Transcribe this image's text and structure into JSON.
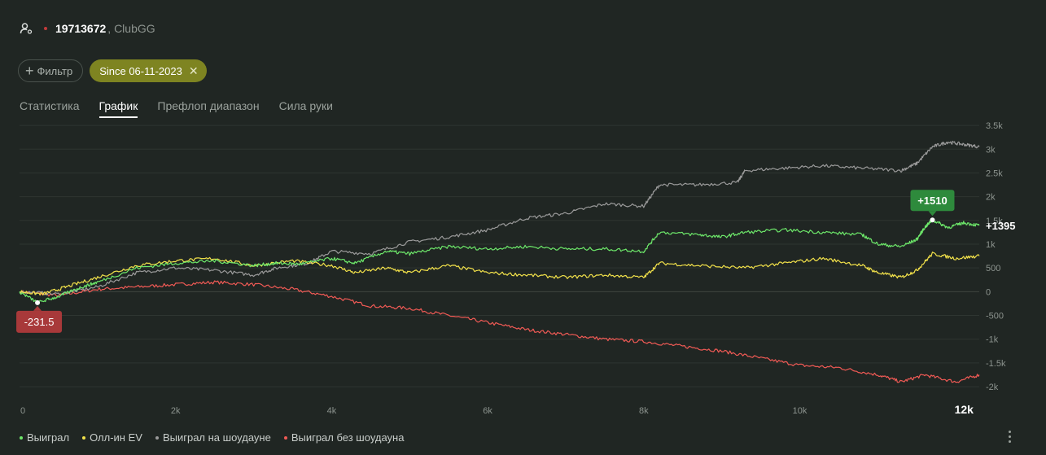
{
  "header": {
    "player_id": "19713672",
    "room": ", ClubGG"
  },
  "filters": {
    "add_filter_label": "Фильтр",
    "active_chip_label": "Since 06-11-2023"
  },
  "tabs": [
    {
      "label": "Статистика",
      "active": false
    },
    {
      "label": "График",
      "active": true
    },
    {
      "label": "Префлоп диапазон",
      "active": false
    },
    {
      "label": "Сила руки",
      "active": false
    }
  ],
  "legend": [
    {
      "label": "Выиграл",
      "color": "#6de86a"
    },
    {
      "label": "Олл-ин EV",
      "color": "#f3e24a"
    },
    {
      "label": "Выиграл на шоудауне",
      "color": "#9a9a9a"
    },
    {
      "label": "Выиграл без шоудауна",
      "color": "#f05a55"
    }
  ],
  "chart_data": {
    "type": "line",
    "x_ticks": [
      "0",
      "2k",
      "4k",
      "6k",
      "8k",
      "10k",
      "12k"
    ],
    "x_tick_values": [
      0,
      2000,
      4000,
      6000,
      8000,
      10000,
      12000
    ],
    "y_ticks": [
      "3.5k",
      "3k",
      "2.5k",
      "2k",
      "1.5k",
      "1k",
      "500",
      "0",
      "-500",
      "-1k",
      "-1.5k",
      "-2k"
    ],
    "y_tick_values": [
      3500,
      3000,
      2500,
      2000,
      1500,
      1000,
      500,
      0,
      -500,
      -1000,
      -1500,
      -2000
    ],
    "xlim": [
      0,
      12300
    ],
    "ylim": [
      -2050,
      3450
    ],
    "annotations": {
      "max": {
        "label": "+1510",
        "x": 11700,
        "y": 1510
      },
      "min": {
        "label": "-231.5",
        "x": 230,
        "y": -231.5
      },
      "last": {
        "label": "+1395",
        "x": 12300,
        "y": 1395
      }
    },
    "series": [
      {
        "name": "Выиграл",
        "color": "#6de86a",
        "points": [
          [
            0,
            0
          ],
          [
            230,
            -231
          ],
          [
            500,
            -100
          ],
          [
            800,
            100
          ],
          [
            1000,
            200
          ],
          [
            1500,
            500
          ],
          [
            2000,
            600
          ],
          [
            2500,
            650
          ],
          [
            3000,
            550
          ],
          [
            3300,
            600
          ],
          [
            3600,
            580
          ],
          [
            4000,
            700
          ],
          [
            4300,
            600
          ],
          [
            4700,
            850
          ],
          [
            5000,
            800
          ],
          [
            5500,
            950
          ],
          [
            6000,
            900
          ],
          [
            6500,
            950
          ],
          [
            7000,
            900
          ],
          [
            7500,
            900
          ],
          [
            8000,
            850
          ],
          [
            8200,
            1250
          ],
          [
            8700,
            1200
          ],
          [
            9000,
            1150
          ],
          [
            9300,
            1250
          ],
          [
            9800,
            1300
          ],
          [
            10300,
            1250
          ],
          [
            10800,
            1200
          ],
          [
            11000,
            1000
          ],
          [
            11300,
            950
          ],
          [
            11500,
            1100
          ],
          [
            11600,
            1350
          ],
          [
            11700,
            1510
          ],
          [
            11900,
            1350
          ],
          [
            12100,
            1450
          ],
          [
            12300,
            1395
          ]
        ]
      },
      {
        "name": "Олл-ин EV",
        "color": "#f3e24a",
        "points": [
          [
            0,
            0
          ],
          [
            300,
            -50
          ],
          [
            600,
            100
          ],
          [
            1000,
            300
          ],
          [
            1500,
            550
          ],
          [
            2000,
            650
          ],
          [
            2500,
            700
          ],
          [
            3000,
            550
          ],
          [
            3500,
            650
          ],
          [
            4000,
            550
          ],
          [
            4300,
            400
          ],
          [
            4700,
            500
          ],
          [
            5000,
            400
          ],
          [
            5500,
            550
          ],
          [
            6000,
            400
          ],
          [
            6500,
            350
          ],
          [
            7000,
            300
          ],
          [
            7500,
            350
          ],
          [
            8000,
            300
          ],
          [
            8200,
            600
          ],
          [
            8700,
            550
          ],
          [
            9300,
            500
          ],
          [
            9800,
            600
          ],
          [
            10300,
            700
          ],
          [
            10800,
            550
          ],
          [
            11000,
            400
          ],
          [
            11300,
            300
          ],
          [
            11500,
            450
          ],
          [
            11700,
            800
          ],
          [
            12000,
            700
          ],
          [
            12300,
            750
          ]
        ]
      },
      {
        "name": "Выиграл на шоудауне",
        "color": "#9a9a9a",
        "points": [
          [
            0,
            0
          ],
          [
            500,
            -50
          ],
          [
            1000,
            100
          ],
          [
            1500,
            400
          ],
          [
            2000,
            500
          ],
          [
            2500,
            450
          ],
          [
            3000,
            350
          ],
          [
            3300,
            500
          ],
          [
            3700,
            600
          ],
          [
            4000,
            850
          ],
          [
            4500,
            800
          ],
          [
            5000,
            1050
          ],
          [
            5500,
            1150
          ],
          [
            6000,
            1300
          ],
          [
            6500,
            1550
          ],
          [
            7000,
            1650
          ],
          [
            7500,
            1850
          ],
          [
            8000,
            1800
          ],
          [
            8200,
            2250
          ],
          [
            8700,
            2250
          ],
          [
            9200,
            2300
          ],
          [
            9300,
            2550
          ],
          [
            9800,
            2600
          ],
          [
            10300,
            2650
          ],
          [
            10800,
            2600
          ],
          [
            11300,
            2550
          ],
          [
            11500,
            2700
          ],
          [
            11700,
            3050
          ],
          [
            11900,
            3150
          ],
          [
            12100,
            3100
          ],
          [
            12300,
            3050
          ]
        ]
      },
      {
        "name": "Выиграл без шоудауна",
        "color": "#f05a55",
        "points": [
          [
            0,
            0
          ],
          [
            500,
            -80
          ],
          [
            1000,
            50
          ],
          [
            1500,
            100
          ],
          [
            2000,
            150
          ],
          [
            2500,
            200
          ],
          [
            3000,
            150
          ],
          [
            3500,
            50
          ],
          [
            4000,
            -100
          ],
          [
            4500,
            -300
          ],
          [
            5000,
            -350
          ],
          [
            5500,
            -500
          ],
          [
            6000,
            -650
          ],
          [
            6500,
            -800
          ],
          [
            7000,
            -900
          ],
          [
            7500,
            -1000
          ],
          [
            8000,
            -1050
          ],
          [
            8500,
            -1150
          ],
          [
            9000,
            -1250
          ],
          [
            9500,
            -1400
          ],
          [
            10000,
            -1550
          ],
          [
            10500,
            -1600
          ],
          [
            11000,
            -1750
          ],
          [
            11300,
            -1900
          ],
          [
            11600,
            -1750
          ],
          [
            12000,
            -1900
          ],
          [
            12300,
            -1750
          ]
        ]
      }
    ]
  }
}
